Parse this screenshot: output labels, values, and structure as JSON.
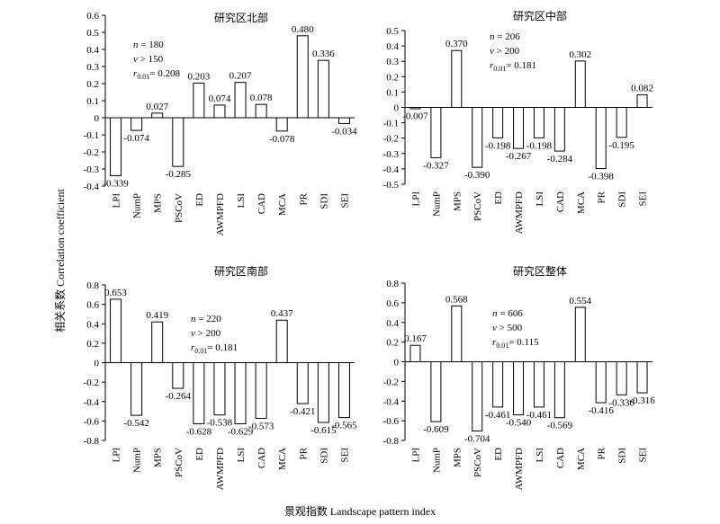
{
  "ylabel": "相关系数 Correlation coefficient",
  "xlabel": "景观指数 Landscape pattern index",
  "chart_data": [
    {
      "type": "bar",
      "title": "研究区北部",
      "categories": [
        "LPI",
        "NumP",
        "MPS",
        "PSCoV",
        "ED",
        "AWMPFD",
        "LSI",
        "CAD",
        "MCA",
        "PR",
        "SDI",
        "SEI"
      ],
      "values": [
        -0.339,
        -0.074,
        0.027,
        -0.285,
        0.203,
        0.074,
        0.207,
        0.078,
        -0.078,
        0.48,
        0.336,
        -0.034
      ],
      "value_labels": [
        "-0.339",
        "-0.074",
        "0.027",
        "-0.285",
        "0.203",
        "0.074",
        "0.207",
        "0.078",
        "-0.078",
        "0.480",
        "0.336",
        "-0.034"
      ],
      "ylim": [
        -0.4,
        0.6
      ],
      "yticks": [
        "-0.4",
        "-0.3",
        "-0.2",
        "-0.1",
        "0",
        "0.1",
        "0.2",
        "0.3",
        "0.4",
        "0.5",
        "0.6"
      ],
      "stats": [
        "n = 180",
        "v > 150",
        "r0.01= 0.208"
      ]
    },
    {
      "type": "bar",
      "title": "研究区中部",
      "categories": [
        "LPI",
        "NumP",
        "MPS",
        "PSCoV",
        "ED",
        "AWMPFD",
        "LSI",
        "CAD",
        "MCA",
        "PR",
        "SDI",
        "SEI"
      ],
      "values": [
        -0.007,
        -0.327,
        0.37,
        -0.39,
        -0.198,
        -0.267,
        -0.198,
        -0.284,
        0.302,
        -0.398,
        -0.195,
        0.082
      ],
      "value_labels": [
        "-0.007",
        "-0.327",
        "0.370",
        "-0.390",
        "-0.198",
        "-0.267",
        "-0.198",
        "-0.284",
        "0.302",
        "-0.398",
        "-0.195",
        "0.082"
      ],
      "ylim": [
        -0.5,
        0.5
      ],
      "yticks": [
        "-0.5",
        "-0.4",
        "-0.3",
        "-0.2",
        "-0.1",
        "0",
        "0.1",
        "0.2",
        "0.3",
        "0.4",
        "0.5"
      ],
      "stats": [
        "n = 206",
        "v > 200",
        "r0.01= 0.181"
      ]
    },
    {
      "type": "bar",
      "title": "研究区南部",
      "categories": [
        "LPI",
        "NumP",
        "MPS",
        "PSCoV",
        "ED",
        "AWMPFD",
        "LSI",
        "CAD",
        "MCA",
        "PR",
        "SDI",
        "SEI"
      ],
      "values": [
        0.653,
        -0.542,
        0.419,
        -0.264,
        -0.628,
        -0.538,
        -0.629,
        -0.573,
        0.437,
        -0.421,
        -0.615,
        -0.565
      ],
      "value_labels": [
        "0.653",
        "-0.542",
        "0.419",
        "-0.264",
        "-0.628",
        "-0.538",
        "-0.629",
        "-0.573",
        "0.437",
        "-0.421",
        "-0.615",
        "-0.565"
      ],
      "ylim": [
        -0.8,
        0.8
      ],
      "yticks": [
        "-0.8",
        "-0.6",
        "-0.4",
        "-0.2",
        "0",
        "0.2",
        "0.4",
        "0.6",
        "0.8"
      ],
      "stats": [
        "n = 220",
        "v > 200",
        "r0.01= 0.181"
      ]
    },
    {
      "type": "bar",
      "title": "研究区整体",
      "categories": [
        "LPI",
        "NumP",
        "MPS",
        "PSCoV",
        "ED",
        "AWMPFD",
        "LSI",
        "CAD",
        "MCA",
        "PR",
        "SDI",
        "SEI"
      ],
      "values": [
        0.167,
        -0.609,
        0.568,
        -0.704,
        -0.461,
        -0.54,
        -0.461,
        -0.569,
        0.554,
        -0.416,
        -0.336,
        -0.316
      ],
      "value_labels": [
        "0.167",
        "-0.609",
        "0.568",
        "-0.704",
        "-0.461",
        "-0.540",
        "-0.461",
        "-0.569",
        "0.554",
        "-0.416",
        "-0.336",
        "-0.316"
      ],
      "ylim": [
        -0.8,
        0.8
      ],
      "yticks": [
        "-0.8",
        "-0.6",
        "-0.4",
        "-0.2",
        "0",
        "0.2",
        "0.4",
        "0.6",
        "0.8"
      ],
      "stats": [
        "n = 606",
        "v > 500",
        "r0.01= 0.115"
      ]
    }
  ]
}
